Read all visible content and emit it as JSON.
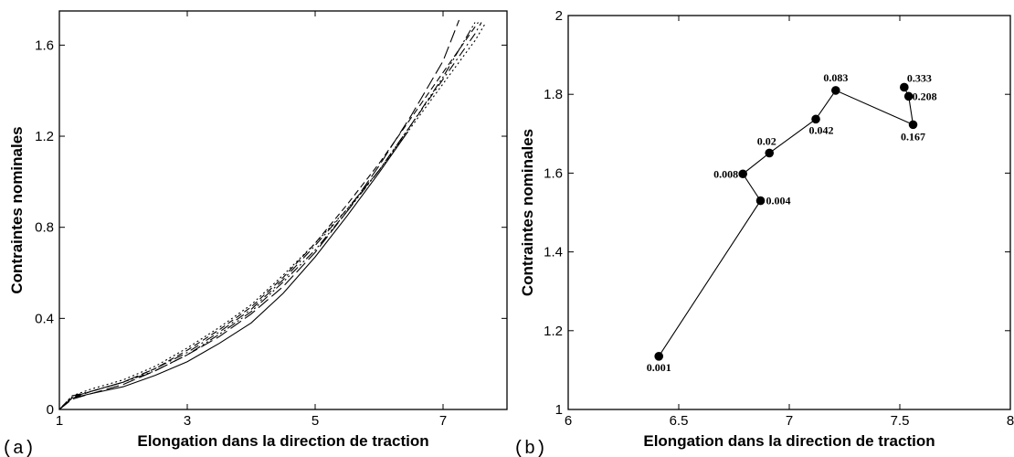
{
  "chart_data": [
    {
      "type": "line",
      "panel_label": "(a)",
      "xlabel": "Elongation dans la direction de traction",
      "ylabel": "Contraintes nominales",
      "xlim": [
        1,
        8
      ],
      "ylim": [
        0,
        1.75
      ],
      "xticks": [
        1,
        3,
        5,
        7
      ],
      "yticks": [
        0,
        0.4,
        0.8,
        1.2,
        1.6
      ],
      "xtick_labels": [
        "1",
        "3",
        "5",
        "7"
      ],
      "ytick_labels": [
        "0",
        "0.4",
        "0.8",
        "1.2",
        "1.6"
      ],
      "grid": false,
      "series": [
        {
          "dash": "solid",
          "x": [
            1,
            1.2,
            1.5,
            2,
            2.5,
            3,
            3.5,
            4,
            4.5,
            5,
            5.5,
            6,
            6.45
          ],
          "y": [
            0,
            0.05,
            0.07,
            0.1,
            0.15,
            0.21,
            0.29,
            0.38,
            0.51,
            0.67,
            0.85,
            1.04,
            1.22
          ]
        },
        {
          "dash": "long-dash",
          "x": [
            1,
            1.2,
            1.5,
            2,
            2.5,
            3,
            3.5,
            4,
            4.5,
            5,
            5.5,
            6,
            6.5,
            7,
            7.25
          ],
          "y": [
            0,
            0.045,
            0.07,
            0.11,
            0.17,
            0.24,
            0.32,
            0.42,
            0.54,
            0.69,
            0.87,
            1.07,
            1.29,
            1.53,
            1.71
          ]
        },
        {
          "dash": "dash-dot",
          "x": [
            1,
            1.2,
            1.5,
            2,
            2.5,
            3,
            3.5,
            4,
            4.5,
            5,
            5.5,
            6,
            6.5,
            7,
            7.5,
            7.6
          ],
          "y": [
            0,
            0.06,
            0.08,
            0.12,
            0.18,
            0.25,
            0.34,
            0.44,
            0.57,
            0.72,
            0.88,
            1.05,
            1.25,
            1.45,
            1.65,
            1.7
          ]
        },
        {
          "dash": "dash-dot-dot",
          "x": [
            1,
            1.2,
            1.5,
            2,
            2.5,
            3,
            3.5,
            4,
            4.5,
            5,
            5.5,
            6,
            6.5,
            7,
            7.5
          ],
          "y": [
            0,
            0.055,
            0.08,
            0.12,
            0.17,
            0.24,
            0.33,
            0.43,
            0.56,
            0.7,
            0.87,
            1.05,
            1.25,
            1.46,
            1.7
          ]
        },
        {
          "dash": "dotted",
          "x": [
            1,
            1.2,
            1.5,
            2,
            2.5,
            3,
            3.5,
            4,
            4.5,
            5,
            5.5,
            6,
            6.5,
            7,
            7.5,
            7.65
          ],
          "y": [
            0,
            0.06,
            0.09,
            0.13,
            0.19,
            0.27,
            0.36,
            0.46,
            0.59,
            0.73,
            0.88,
            1.05,
            1.24,
            1.43,
            1.62,
            1.69
          ]
        },
        {
          "dash": "medium-dash",
          "x": [
            1,
            1.2,
            1.5,
            2,
            2.5,
            3,
            3.5,
            4,
            4.5,
            5,
            5.5,
            6,
            6.5,
            7,
            7.5,
            7.55
          ],
          "y": [
            0,
            0.05,
            0.08,
            0.12,
            0.18,
            0.26,
            0.35,
            0.45,
            0.58,
            0.73,
            0.9,
            1.08,
            1.28,
            1.48,
            1.68,
            1.7
          ]
        }
      ]
    },
    {
      "type": "line",
      "panel_label": "(b)",
      "xlabel": "Elongation dans la direction de traction",
      "ylabel": "Contraintes nominales",
      "xlim": [
        6,
        8
      ],
      "ylim": [
        1,
        2
      ],
      "xticks": [
        6,
        6.5,
        7,
        7.5,
        8
      ],
      "yticks": [
        1,
        1.2,
        1.4,
        1.6,
        1.8,
        2
      ],
      "xtick_labels": [
        "6",
        "6.5",
        "7",
        "7.5",
        "8"
      ],
      "ytick_labels": [
        "1",
        "1.2",
        "1.4",
        "1.6",
        "1.8",
        "2"
      ],
      "grid": false,
      "markers": true,
      "points": [
        {
          "label": "0.001",
          "x": 6.41,
          "y": 1.135
        },
        {
          "label": "0.004",
          "x": 6.87,
          "y": 1.53
        },
        {
          "label": "0.008",
          "x": 6.79,
          "y": 1.598
        },
        {
          "label": "0.02",
          "x": 6.91,
          "y": 1.651
        },
        {
          "label": "0.042",
          "x": 7.12,
          "y": 1.737
        },
        {
          "label": "0.083",
          "x": 7.21,
          "y": 1.81
        },
        {
          "label": "0.167",
          "x": 7.56,
          "y": 1.723
        },
        {
          "label": "0.208",
          "x": 7.54,
          "y": 1.795
        },
        {
          "label": "0.333",
          "x": 7.52,
          "y": 1.818
        }
      ]
    }
  ]
}
